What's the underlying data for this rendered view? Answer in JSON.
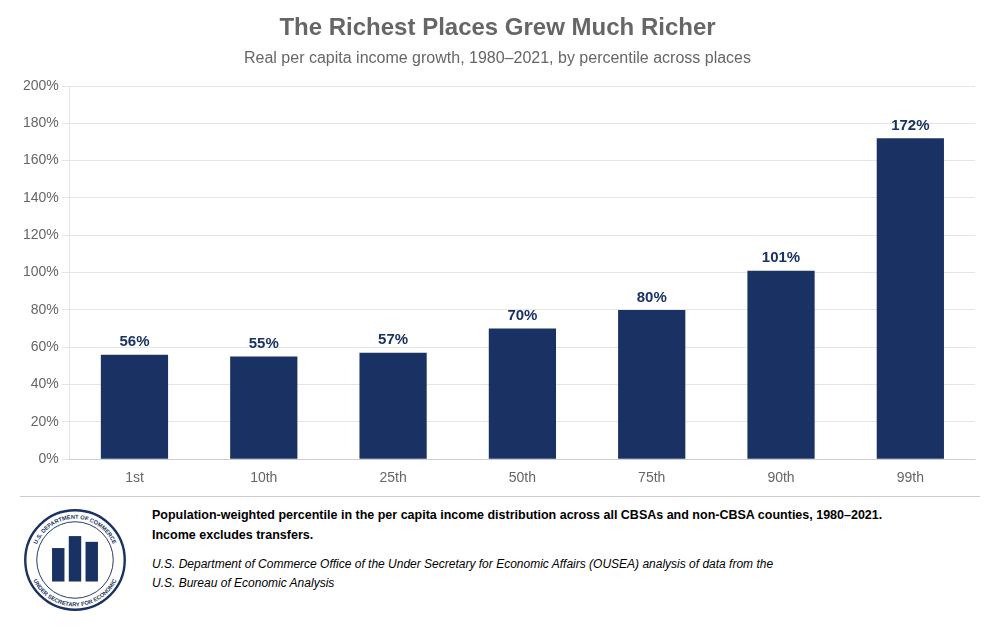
{
  "chart_data": {
    "type": "bar",
    "title": "The Richest Places Grew Much Richer",
    "subtitle": "Real per capita income growth, 1980–2021, by percentile across places",
    "categories": [
      "1st",
      "10th",
      "25th",
      "50th",
      "75th",
      "90th",
      "99th"
    ],
    "values": [
      56,
      55,
      57,
      70,
      80,
      101,
      172
    ],
    "value_labels": [
      "56%",
      "55%",
      "57%",
      "70%",
      "80%",
      "101%",
      "172%"
    ],
    "data_labels": true,
    "color": "#1a3263",
    "ylim": [
      0,
      200
    ],
    "yticks": [
      {
        "value": 0,
        "label": "0%"
      },
      {
        "value": 20,
        "label": "20%"
      },
      {
        "value": 40,
        "label": "40%"
      },
      {
        "value": 60,
        "label": "60%"
      },
      {
        "value": 80,
        "label": "80%"
      },
      {
        "value": 100,
        "label": "100%"
      },
      {
        "value": 120,
        "label": "120%"
      },
      {
        "value": 140,
        "label": "140%"
      },
      {
        "value": 160,
        "label": "160%"
      },
      {
        "value": 180,
        "label": "180%"
      },
      {
        "value": 200,
        "label": "200%"
      }
    ],
    "grid": true,
    "annotations": [
      "Population-weighted percentile in the per capita income distribution across all CBSAs and non-CBSA counties, 1980–2021.\nIncome excludes transfers.",
      "U.S. Department of Commerce Office of the Under Secretary for Economic Affairs (OUSEA) analysis of data from the\nU.S. Bureau of Economic Analysis",
      "U.S. DEPARTMENT OF COMMERCE",
      "UNDER SECRETARY FOR ECONOMIC"
    ]
  }
}
